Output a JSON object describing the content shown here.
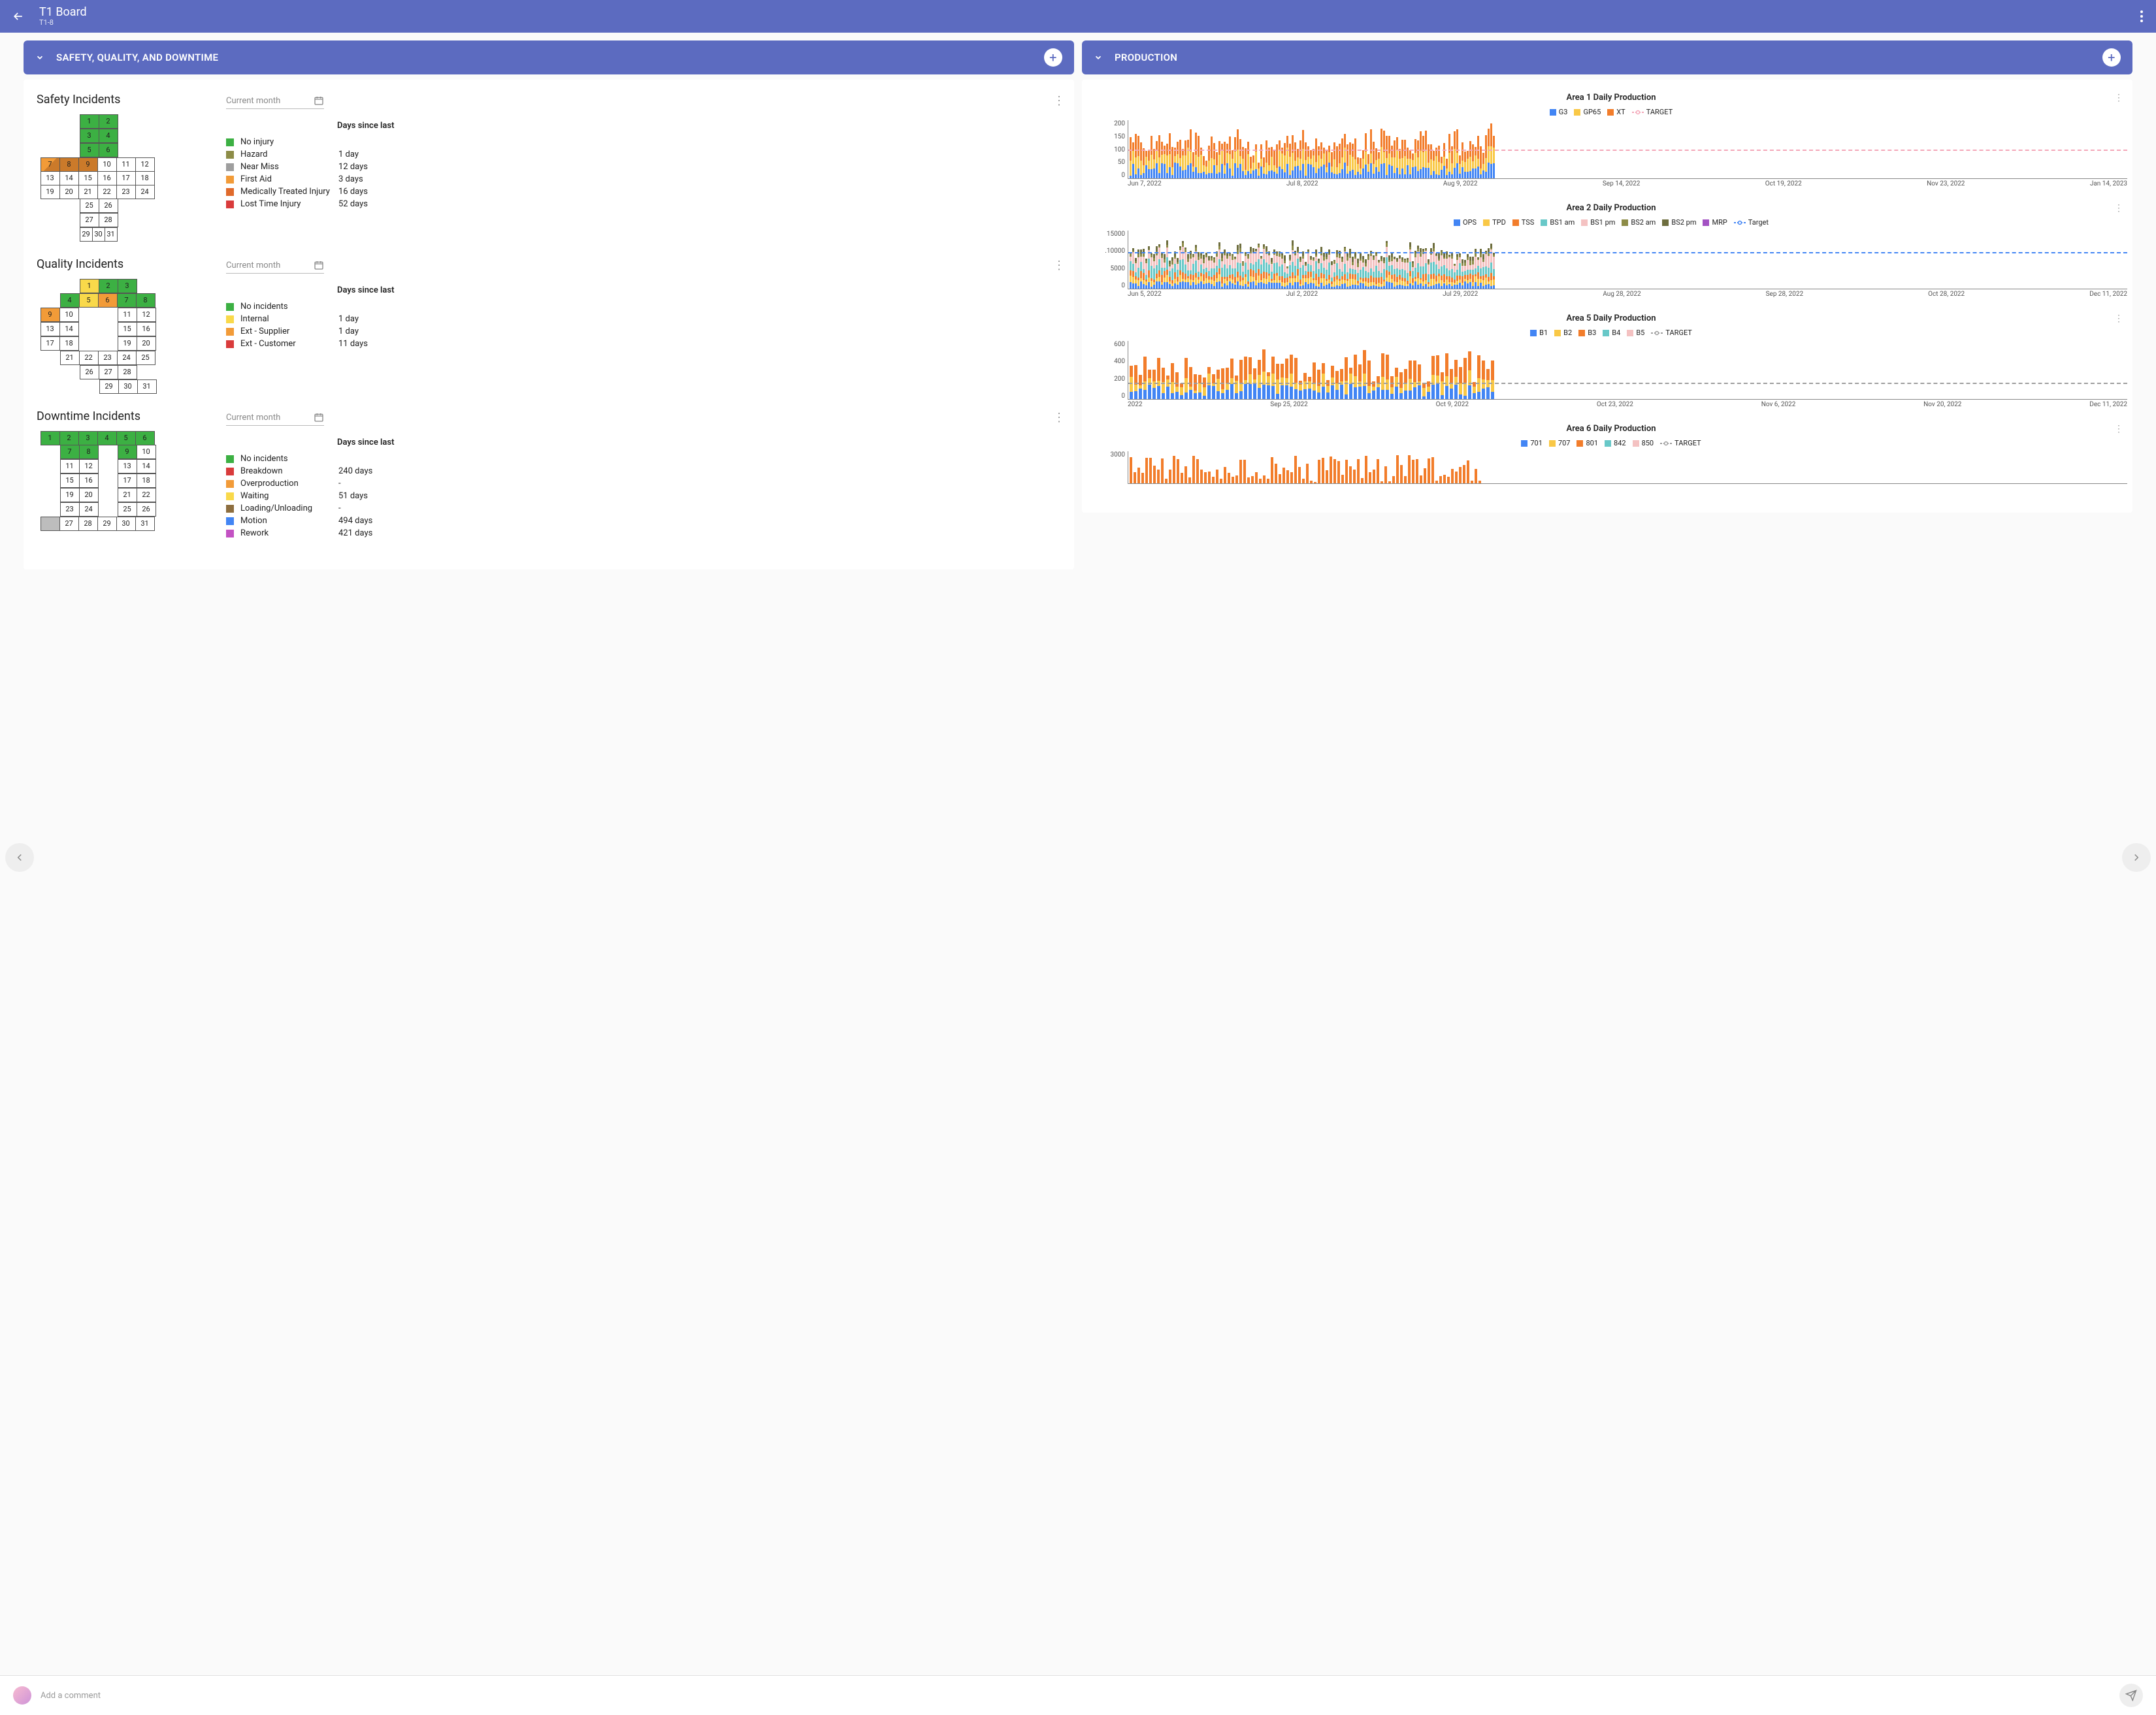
{
  "header": {
    "title": "T1 Board",
    "subtitle": "T1-8"
  },
  "panels": {
    "left": {
      "title": "SAFETY, QUALITY, AND DOWNTIME"
    },
    "right": {
      "title": "PRODUCTION"
    }
  },
  "colors": {
    "green": "#3cb043",
    "olive": "#8d8c47",
    "yellow": "#f9d94a",
    "orange": "#f29b38",
    "dkorange": "#cb7a2a",
    "red": "#d93b3b",
    "blue": "#4285f4",
    "teal": "#68c8c8",
    "magenta": "#c352c3",
    "pink": "#f4c2c2",
    "gold": "#f9c846",
    "dkolive": "#6e6e3f",
    "ltblue": "#7bb0f0",
    "grey": "#bdbdbd",
    "purple": "#a352c3"
  },
  "period": "Current month",
  "safety": {
    "title": "Safety Incidents",
    "days_label": "Days since last",
    "legend": [
      {
        "c": "#3cb043",
        "label": "No injury",
        "val": ""
      },
      {
        "c": "#8d8c47",
        "label": "Hazard",
        "val": "1 day"
      },
      {
        "c": "#9e9e9e",
        "label": "Near Miss",
        "val": "12 days"
      },
      {
        "c": "#f29b38",
        "label": "First Aid",
        "val": "3 days"
      },
      {
        "c": "#e06a2b",
        "label": "Medically Treated Injury",
        "val": "16 days"
      },
      {
        "c": "#d93b3b",
        "label": "Lost Time Injury",
        "val": "52 days"
      }
    ],
    "grid": [
      [
        null,
        null,
        {
          "n": 1,
          "c": "#3cb043"
        },
        {
          "n": 2,
          "c": "#3cb043"
        },
        null,
        null
      ],
      [
        null,
        null,
        {
          "n": 3,
          "c": "#3cb043"
        },
        {
          "n": 4,
          "c": "#3cb043"
        },
        null,
        null
      ],
      [
        null,
        null,
        {
          "n": 5,
          "c": "#3cb043"
        },
        {
          "n": 6,
          "c": "#3cb043"
        },
        null,
        null
      ],
      [
        {
          "n": 7,
          "c": "#cb7a2a",
          "tri": "#f29b38"
        },
        {
          "n": 8,
          "c": "#cb7a2a"
        },
        {
          "n": 9,
          "c": "#cb7a2a"
        },
        {
          "n": 10
        },
        {
          "n": 11
        },
        {
          "n": 12
        }
      ],
      [
        {
          "n": 13
        },
        {
          "n": 14
        },
        {
          "n": 15
        },
        {
          "n": 16
        },
        {
          "n": 17
        },
        {
          "n": 18
        }
      ],
      [
        {
          "n": 19
        },
        {
          "n": 20
        },
        {
          "n": 21
        },
        {
          "n": 22
        },
        {
          "n": 23
        },
        {
          "n": 24
        }
      ],
      [
        null,
        null,
        {
          "n": 25
        },
        {
          "n": 26
        },
        null,
        null
      ],
      [
        null,
        null,
        {
          "n": 27
        },
        {
          "n": 28
        },
        null,
        null
      ],
      [
        null,
        null,
        {
          "n": 29,
          "half": true
        },
        {
          "n": 30,
          "half": true
        },
        {
          "n": 31,
          "half": true
        },
        null
      ]
    ]
  },
  "quality": {
    "title": "Quality Incidents",
    "days_label": "Days since last",
    "legend": [
      {
        "c": "#3cb043",
        "label": "No incidents",
        "val": ""
      },
      {
        "c": "#f9d94a",
        "label": "Internal",
        "val": "1 day"
      },
      {
        "c": "#f29b38",
        "label": "Ext - Supplier",
        "val": "1 day"
      },
      {
        "c": "#d93b3b",
        "label": "Ext - Customer",
        "val": "11 days"
      }
    ],
    "grid": [
      [
        null,
        null,
        {
          "n": 1,
          "c": "#f9d94a"
        },
        {
          "n": 2,
          "c": "#3cb043"
        },
        {
          "n": 3,
          "c": "#3cb043"
        },
        null
      ],
      [
        null,
        {
          "n": 4,
          "c": "#3cb043"
        },
        {
          "n": 5,
          "c": "#f9d94a"
        },
        {
          "n": 6,
          "c": "#f29b38"
        },
        {
          "n": 7,
          "c": "#3cb043"
        },
        {
          "n": 8,
          "c": "#3cb043"
        }
      ],
      [
        {
          "n": 9,
          "c": "#f29b38"
        },
        {
          "n": 10
        },
        null,
        null,
        {
          "n": 11
        },
        {
          "n": 12
        }
      ],
      [
        {
          "n": 13
        },
        {
          "n": 14
        },
        null,
        null,
        {
          "n": 15
        },
        {
          "n": 16
        }
      ],
      [
        {
          "n": 17
        },
        {
          "n": 18
        },
        null,
        null,
        {
          "n": 19
        },
        {
          "n": 20
        }
      ],
      [
        null,
        {
          "n": 21
        },
        {
          "n": 22
        },
        {
          "n": 23
        },
        {
          "n": 24
        },
        {
          "n": 25
        }
      ],
      [
        null,
        null,
        {
          "n": 26
        },
        {
          "n": 27
        },
        {
          "n": 28
        },
        null
      ],
      [
        null,
        null,
        null,
        {
          "n": 29
        },
        {
          "n": 30
        },
        {
          "n": 31
        }
      ]
    ]
  },
  "downtime": {
    "title": "Downtime Incidents",
    "days_label": "Days since last",
    "legend": [
      {
        "c": "#3cb043",
        "label": "No incidents",
        "val": ""
      },
      {
        "c": "#d93b3b",
        "label": "Breakdown",
        "val": "240 days"
      },
      {
        "c": "#f29b38",
        "label": "Overproduction",
        "val": "-"
      },
      {
        "c": "#f9d94a",
        "label": "Waiting",
        "val": "51 days"
      },
      {
        "c": "#8d6e3f",
        "label": "Loading/Unloading",
        "val": "-"
      },
      {
        "c": "#4285f4",
        "label": "Motion",
        "val": "494 days"
      },
      {
        "c": "#c352c3",
        "label": "Rework",
        "val": "421 days"
      }
    ],
    "grid": [
      [
        {
          "n": 1,
          "c": "#3cb043"
        },
        {
          "n": 2,
          "c": "#3cb043"
        },
        {
          "n": 3,
          "c": "#3cb043"
        },
        {
          "n": 4,
          "c": "#3cb043"
        },
        {
          "n": 5,
          "c": "#3cb043"
        },
        {
          "n": 6,
          "c": "#3cb043"
        }
      ],
      [
        null,
        {
          "n": 7,
          "c": "#3cb043"
        },
        {
          "n": 8,
          "c": "#3cb043"
        },
        null,
        {
          "n": 9,
          "c": "#3cb043"
        },
        {
          "n": 10
        }
      ],
      [
        null,
        {
          "n": 11
        },
        {
          "n": 12
        },
        null,
        {
          "n": 13
        },
        {
          "n": 14
        }
      ],
      [
        null,
        {
          "n": 15
        },
        {
          "n": 16
        },
        null,
        {
          "n": 17
        },
        {
          "n": 18
        }
      ],
      [
        null,
        {
          "n": 19
        },
        {
          "n": 20
        },
        null,
        {
          "n": 21
        },
        {
          "n": 22
        }
      ],
      [
        null,
        {
          "n": 23
        },
        {
          "n": 24
        },
        null,
        {
          "n": 25
        },
        {
          "n": 26
        }
      ],
      [
        {
          "n": "",
          "c": "#bdbdbd"
        },
        {
          "n": 27
        },
        {
          "n": 28
        },
        {
          "n": 29
        },
        {
          "n": 30
        },
        {
          "n": 31
        }
      ]
    ]
  },
  "charts": [
    {
      "title": "Area 1 Daily Production",
      "height": 90,
      "ymax": 220,
      "yticks": [
        "200",
        "150",
        "100",
        "50",
        "0"
      ],
      "xticks": [
        "Jun 7, 2022",
        "Jul 8, 2022",
        "Aug 9, 2022",
        "Sep 14, 2022",
        "Oct 19, 2022",
        "Nov 23, 2022",
        "Jan 14, 2023"
      ],
      "series": [
        {
          "name": "G3",
          "c": "#4285f4",
          "type": "sw"
        },
        {
          "name": "GP65",
          "c": "#f9c846",
          "type": "sw"
        },
        {
          "name": "XT",
          "c": "#f27d2b",
          "type": "sw"
        },
        {
          "name": "TARGET",
          "c": "#f4a6b8",
          "type": "ln"
        }
      ],
      "target": {
        "val": 110,
        "c": "#f4a6b8"
      },
      "bars_seed": 140,
      "stack": [
        {
          "c": "#4285f4",
          "min": 10,
          "max": 60
        },
        {
          "c": "#f9c846",
          "min": 20,
          "max": 70
        },
        {
          "c": "#f27d2b",
          "min": 20,
          "max": 90
        }
      ]
    },
    {
      "title": "Area 2 Daily Production",
      "height": 90,
      "ymax": 16000,
      "yticks": [
        "15000",
        ".10000",
        "5000",
        "0"
      ],
      "xticks": [
        "Jun 5, 2022",
        "Jul 2, 2022",
        "Jul 29, 2022",
        "Aug 28, 2022",
        "Sep 28, 2022",
        "Oct 28, 2022",
        "Dec 11, 2022"
      ],
      "series": [
        {
          "name": "OPS",
          "c": "#4285f4",
          "type": "sw"
        },
        {
          "name": "TPD",
          "c": "#f9c846",
          "type": "sw"
        },
        {
          "name": "TSS",
          "c": "#f27d2b",
          "type": "sw"
        },
        {
          "name": "BS1 am",
          "c": "#68c8c8",
          "type": "sw"
        },
        {
          "name": "BS1 pm",
          "c": "#f4c2c2",
          "type": "sw"
        },
        {
          "name": "BS2 am",
          "c": "#8d8c47",
          "type": "sw"
        },
        {
          "name": "BS2 pm",
          "c": "#6e6e3f",
          "type": "sw"
        },
        {
          "name": "MRP",
          "c": "#a352c3",
          "type": "sw"
        },
        {
          "name": "Target",
          "c": "#4285f4",
          "type": "ln"
        }
      ],
      "target": {
        "val": 10000,
        "c": "#4285f4"
      },
      "bars_seed": 140,
      "stack": [
        {
          "c": "#4285f4",
          "min": 500,
          "max": 2000
        },
        {
          "c": "#f9c846",
          "min": 500,
          "max": 2000
        },
        {
          "c": "#f27d2b",
          "min": 500,
          "max": 2000
        },
        {
          "c": "#68c8c8",
          "min": 1000,
          "max": 3500
        },
        {
          "c": "#f4c2c2",
          "min": 1000,
          "max": 3500
        },
        {
          "c": "#8d8c47",
          "min": 200,
          "max": 1200
        },
        {
          "c": "#6e6e3f",
          "min": 200,
          "max": 1500
        }
      ]
    },
    {
      "title": "Area 5 Daily Production",
      "height": 90,
      "ymax": 700,
      "yticks": [
        "600",
        "400",
        "200",
        "0"
      ],
      "xticks": [
        "2022",
        "Sep 25, 2022",
        "Oct 9, 2022",
        "Oct 23, 2022",
        "Nov 6, 2022",
        "Nov 20, 2022",
        "Dec 11, 2022"
      ],
      "series": [
        {
          "name": "B1",
          "c": "#4285f4",
          "type": "sw"
        },
        {
          "name": "B2",
          "c": "#f9c846",
          "type": "sw"
        },
        {
          "name": "B3",
          "c": "#f27d2b",
          "type": "sw"
        },
        {
          "name": "B4",
          "c": "#68c8c8",
          "type": "sw"
        },
        {
          "name": "B5",
          "c": "#f4c2c2",
          "type": "sw"
        },
        {
          "name": "TARGET",
          "c": "#9e9e9e",
          "type": "ln"
        }
      ],
      "target": {
        "val": 200,
        "c": "#9e9e9e"
      },
      "bars_seed": 80,
      "barw": 5,
      "gap": 2,
      "stack": [
        {
          "c": "#4285f4",
          "min": 30,
          "max": 180
        },
        {
          "c": "#f9c846",
          "min": 30,
          "max": 180
        },
        {
          "c": "#f27d2b",
          "min": 40,
          "max": 300
        }
      ]
    },
    {
      "title": "Area 6 Daily Production",
      "height": 50,
      "ymax": 3200,
      "yticks": [
        "3000",
        ""
      ],
      "xticks": [],
      "series": [
        {
          "name": "701",
          "c": "#4285f4",
          "type": "sw"
        },
        {
          "name": "707",
          "c": "#f9c846",
          "type": "sw"
        },
        {
          "name": "801",
          "c": "#f27d2b",
          "type": "sw"
        },
        {
          "name": "842",
          "c": "#68c8c8",
          "type": "sw"
        },
        {
          "name": "850",
          "c": "#f4c2c2",
          "type": "sw"
        },
        {
          "name": "TARGET",
          "c": "#9e9e9e",
          "type": "ln"
        }
      ],
      "bars_seed": 90,
      "barw": 4,
      "gap": 2,
      "stack": [
        {
          "c": "#f27d2b",
          "min": 100,
          "max": 2800
        }
      ]
    }
  ],
  "comment_placeholder": "Add a comment"
}
